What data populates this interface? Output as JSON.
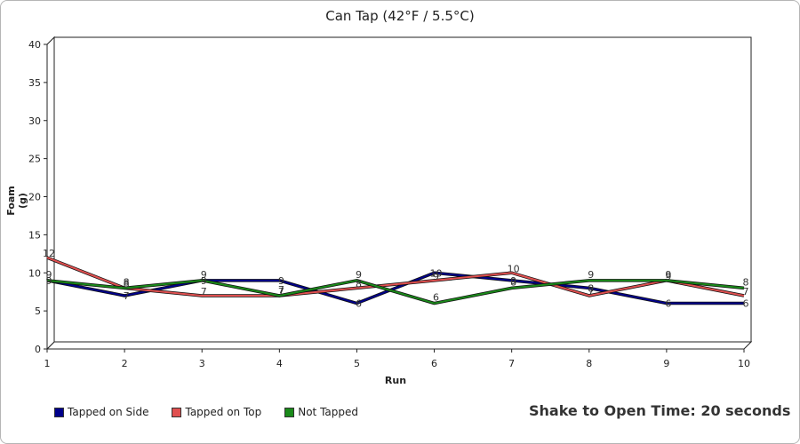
{
  "chart_data": {
    "type": "line",
    "title": "Can Tap (42°F / 5.5°C)",
    "xlabel": "Run",
    "ylabel": "Foam (g)",
    "x": [
      1,
      2,
      3,
      4,
      5,
      6,
      7,
      8,
      9,
      10
    ],
    "ylim": [
      0,
      40
    ],
    "yticks": [
      0,
      5,
      10,
      15,
      20,
      25,
      30,
      35,
      40
    ],
    "grid": false,
    "legend_position": "bottom-left",
    "series": [
      {
        "name": "Tapped on Side",
        "color": "#00008b",
        "values": [
          9,
          7,
          9,
          9,
          6,
          10,
          9,
          8,
          6,
          6
        ]
      },
      {
        "name": "Tapped on Top",
        "color": "#e05050",
        "values": [
          12,
          8,
          7,
          7,
          8,
          9,
          10,
          7,
          9,
          7
        ]
      },
      {
        "name": "Not Tapped",
        "color": "#1a8a1a",
        "values": [
          9,
          8,
          9,
          7,
          9,
          6,
          8,
          9,
          9,
          8
        ]
      }
    ]
  },
  "annotation": "Shake to Open Time: 20 seconds"
}
